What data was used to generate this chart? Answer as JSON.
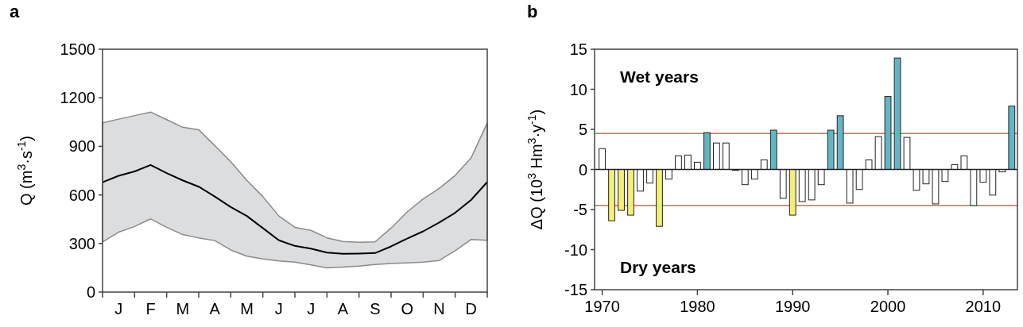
{
  "chart_data": [
    {
      "type": "line",
      "title": "a",
      "ylabel": "Q (m$^{3}$·s$^{-1}$)",
      "ylim": [
        0,
        1500
      ],
      "yticks": [
        0,
        300,
        600,
        900,
        1200,
        1500
      ],
      "categories": [
        null,
        "J",
        null,
        "F",
        null,
        "M",
        null,
        "A",
        null,
        "M",
        null,
        "J",
        null,
        "J",
        null,
        "A",
        null,
        "S",
        null,
        "O",
        null,
        "N",
        null,
        "D",
        null
      ],
      "series": [
        {
          "color": "#000000",
          "values": [
            678,
            718,
            745,
            785,
            735,
            690,
            651,
            590,
            525,
            470,
            395,
            320,
            285,
            268,
            244,
            236,
            238,
            241,
            282,
            330,
            375,
            430,
            490,
            570,
            680
          ],
          "upper": [
            1045,
            1068,
            1090,
            1112,
            1065,
            1018,
            1003,
            905,
            805,
            690,
            590,
            470,
            400,
            381,
            335,
            312,
            307,
            310,
            395,
            495,
            575,
            640,
            720,
            830,
            1045
          ],
          "lower": [
            309,
            370,
            405,
            452,
            400,
            355,
            334,
            318,
            260,
            222,
            205,
            192,
            185,
            168,
            150,
            154,
            160,
            170,
            176,
            180,
            185,
            195,
            255,
            325,
            320
          ]
        }
      ],
      "marker": "none"
    },
    {
      "type": "bar",
      "title": "b",
      "ylabel": "ΔQ (10$^{3}$ Hm$^{3}$·y$^{-1}$)",
      "xlim": [
        1969.2,
        2013.6
      ],
      "xticks": [
        1970,
        1980,
        1990,
        2000,
        2010
      ],
      "ylim": [
        -15,
        15
      ],
      "yticks": [
        -15,
        -10,
        -5,
        0,
        5,
        10,
        15
      ],
      "x": [
        1970,
        1971,
        1972,
        1973,
        1974,
        1975,
        1976,
        1977,
        1978,
        1979,
        1980,
        1981,
        1982,
        1983,
        1984,
        1985,
        1986,
        1987,
        1988,
        1989,
        1990,
        1991,
        1992,
        1993,
        1994,
        1995,
        1996,
        1997,
        1998,
        1999,
        2000,
        2001,
        2002,
        2003,
        2004,
        2005,
        2006,
        2007,
        2008,
        2009,
        2010,
        2011,
        2012,
        2013
      ],
      "values": [
        2.6,
        -6.4,
        -5.1,
        -5.7,
        -2.7,
        -1.7,
        -7.1,
        -1.2,
        1.7,
        1.8,
        0.9,
        4.6,
        3.3,
        3.3,
        -0.1,
        -1.9,
        -1.2,
        1.2,
        4.9,
        -3.6,
        -5.7,
        -4.0,
        -3.8,
        -1.9,
        4.9,
        6.7,
        -4.2,
        -2.5,
        1.2,
        4.1,
        9.1,
        13.9,
        4.0,
        -2.6,
        -1.8,
        -4.3,
        -1.5,
        0.6,
        1.7,
        -4.5,
        -1.6,
        -3.2,
        -0.3,
        7.9
      ],
      "colors": [
        "#ffffff",
        "#f5ef78",
        "#f5ef78",
        "#f5ef78",
        "#ffffff",
        "#ffffff",
        "#f5ef78",
        "#ffffff",
        "#ffffff",
        "#ffffff",
        "#ffffff",
        "#62b6c4",
        "#ffffff",
        "#ffffff",
        "#ffffff",
        "#ffffff",
        "#ffffff",
        "#ffffff",
        "#62b6c4",
        "#ffffff",
        "#f5ef78",
        "#ffffff",
        "#ffffff",
        "#ffffff",
        "#62b6c4",
        "#62b6c4",
        "#ffffff",
        "#ffffff",
        "#ffffff",
        "#ffffff",
        "#62b6c4",
        "#62b6c4",
        "#ffffff",
        "#ffffff",
        "#ffffff",
        "#ffffff",
        "#ffffff",
        "#ffffff",
        "#ffffff",
        "#ffffff",
        "#ffffff",
        "#ffffff",
        "#ffffff",
        "#62b6c4"
      ],
      "ref_lines": [
        {
          "axis": "y",
          "value": 4.5,
          "color": "#e8393a"
        },
        {
          "axis": "y",
          "value": -4.5,
          "color": "#e8393a"
        }
      ],
      "annotations": [
        "Wet years",
        "Dry years"
      ]
    }
  ]
}
